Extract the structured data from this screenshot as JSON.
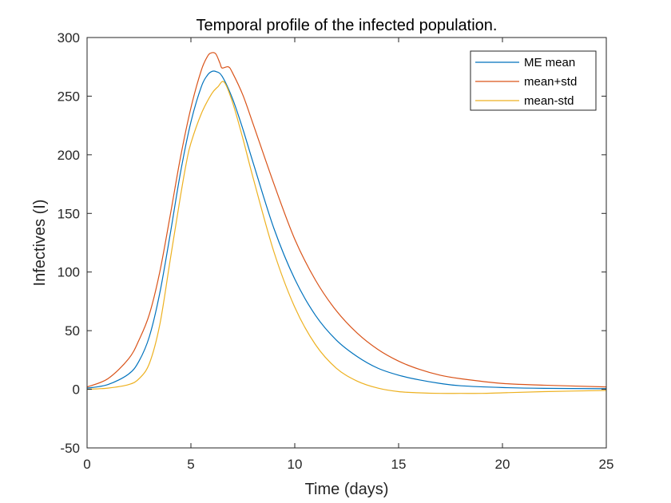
{
  "chart_data": {
    "type": "line",
    "title": "Temporal profile of the infected population.",
    "xlabel": "Time (days)",
    "ylabel": "Infectives (I)",
    "xlim": [
      0,
      25
    ],
    "ylim": [
      -50,
      300
    ],
    "xticks": [
      0,
      5,
      10,
      15,
      20,
      25
    ],
    "yticks": [
      -50,
      0,
      50,
      100,
      150,
      200,
      250,
      300
    ],
    "grid": false,
    "legend_position": "top-right",
    "series": [
      {
        "name": "ME mean",
        "color": "#0072BD",
        "x": [
          0,
          1,
          2,
          2.5,
          3,
          3.5,
          4,
          4.5,
          5,
          5.5,
          5.8,
          6,
          6.2,
          6.5,
          7,
          7.5,
          8,
          9,
          10,
          11,
          12,
          13,
          14,
          15,
          16,
          17,
          18,
          20,
          22,
          25
        ],
        "y": [
          1,
          4,
          13,
          24,
          45,
          82,
          132,
          185,
          228,
          258,
          268,
          271,
          271,
          267,
          248,
          222,
          193,
          137,
          94,
          63,
          42,
          28,
          18,
          12,
          8,
          5,
          3,
          1.5,
          0.8,
          0.5
        ]
      },
      {
        "name": "mean+std",
        "color": "#D95319",
        "x": [
          0,
          1,
          2,
          2.5,
          3,
          3.5,
          4,
          4.5,
          5,
          5.5,
          5.8,
          6,
          6.2,
          6.4,
          6.5,
          6.8,
          7,
          7.5,
          8,
          9,
          10,
          11,
          12,
          13,
          14,
          15,
          16,
          17,
          18,
          20,
          22,
          25
        ],
        "y": [
          2,
          9,
          26,
          42,
          64,
          100,
          148,
          198,
          240,
          272,
          284,
          287,
          286,
          278,
          274,
          275,
          270,
          251,
          226,
          175,
          128,
          93,
          67,
          48,
          34,
          24,
          17,
          12,
          9,
          5,
          3.5,
          2
        ]
      },
      {
        "name": "mean-std",
        "color": "#EDB120",
        "x": [
          0,
          1,
          2,
          2.5,
          3,
          3.5,
          4,
          4.5,
          4.8,
          5,
          5.5,
          6,
          6.3,
          6.6,
          7,
          7.5,
          8,
          9,
          10,
          11,
          12,
          13,
          14,
          15,
          16,
          17,
          18,
          19,
          20,
          22,
          25
        ],
        "y": [
          0,
          1,
          4,
          9,
          22,
          55,
          110,
          165,
          195,
          210,
          235,
          252,
          258,
          262,
          245,
          214,
          180,
          117,
          70,
          38,
          18,
          7,
          1,
          -2,
          -3,
          -3.5,
          -3.5,
          -3.5,
          -3,
          -2,
          -1
        ]
      }
    ]
  }
}
